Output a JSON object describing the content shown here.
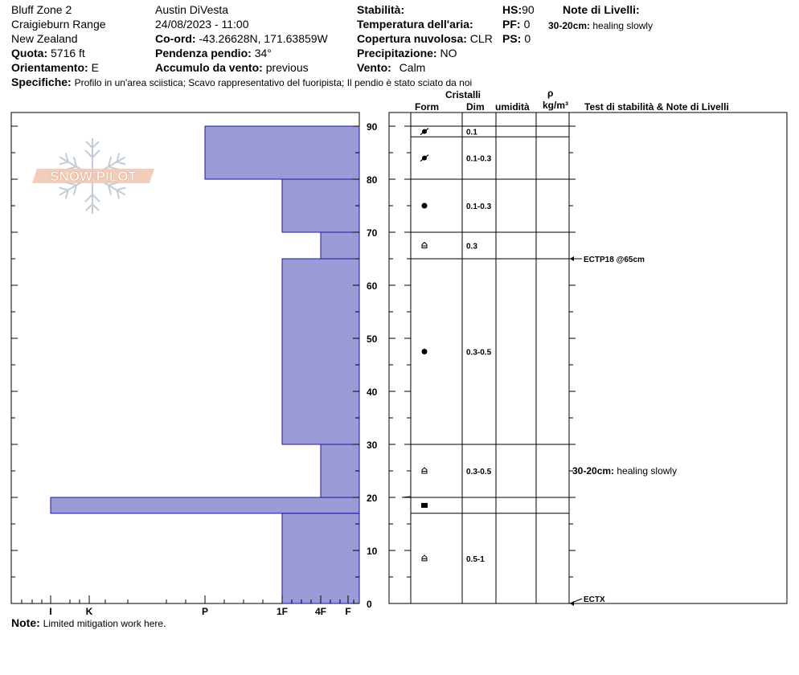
{
  "header": {
    "location": "Bluff Zone 2",
    "range": "Craigieburn Range",
    "country": "New Zealand",
    "quota_label": "Quota:",
    "quota_value": "5716 ft",
    "orientamento_label": "Orientamento:",
    "orientamento_value": "E",
    "observer": "Austin DiVesta",
    "datetime": "24/08/2023 - 11:00",
    "coord_label": "Co-ord:",
    "coord_value": "-43.26628N, 171.63859W",
    "pendenza_label": "Pendenza pendio:",
    "pendenza_value": "34°",
    "accumulo_label": "Accumulo da vento:",
    "accumulo_value": "previous",
    "stabilita_label": "Stabilità:",
    "temp_label": "Temperatura dell'aria:",
    "copertura_label": "Copertura nuvolosa:",
    "copertura_value": "CLR",
    "precipitazione_label": "Precipitazione:",
    "precipitazione_value": "NO",
    "vento_label": "Vento:",
    "vento_value": "Calm",
    "hs_label": "HS:",
    "hs_value": "90",
    "pf_label": "PF:",
    "pf_value": "0",
    "ps_label": "PS:",
    "ps_value": "0",
    "note_livelli_label": "Note di Livelli:",
    "note_livelli_depth": "30-20cm:",
    "note_livelli_text": "healing slowly",
    "specifiche_label": "Specifiche:",
    "specifiche_value": "Profilo in un'area sciistica; Scavo rappresentativo del fuoripista; Il pendio è stato sciato da noi"
  },
  "logo": {
    "text": "SNOW PILOT"
  },
  "note": {
    "label": "Note:",
    "value": "Limited mitigation work here."
  },
  "columns": {
    "cristalli": "Cristalli",
    "form": "Form",
    "dim": "Dim",
    "umidita": "umidità",
    "rho": "ρ",
    "density_unit": "kg/m³",
    "test_title": "Test di stabilità & Note di Livelli"
  },
  "chart_data": {
    "type": "bar",
    "orientation": "horizontal",
    "y_axis": {
      "range": [
        0,
        90
      ],
      "ticks": [
        0,
        10,
        20,
        30,
        40,
        50,
        60,
        70,
        80,
        90
      ]
    },
    "x_axis": {
      "scale": "hand hardness",
      "ticks": [
        "I",
        "K",
        "P",
        "1F",
        "4F",
        "F"
      ]
    },
    "layers": [
      {
        "top": 90,
        "bottom": 80,
        "hardness": "P"
      },
      {
        "top": 80,
        "bottom": 70,
        "hardness": "1F"
      },
      {
        "top": 70,
        "bottom": 65,
        "hardness": "4F"
      },
      {
        "top": 65,
        "bottom": 30,
        "hardness": "1F"
      },
      {
        "top": 30,
        "bottom": 20,
        "hardness": "4F"
      },
      {
        "top": 20,
        "bottom": 17,
        "hardness": "I"
      },
      {
        "top": 17,
        "bottom": 0,
        "hardness": "1F"
      }
    ],
    "crystals": [
      {
        "top": 90,
        "bottom": 88,
        "form": "precipitation-particles-icon",
        "dim": "0.1"
      },
      {
        "top": 88,
        "bottom": 80,
        "form": "precipitation-particles-icon",
        "dim": "0.1-0.3"
      },
      {
        "top": 80,
        "bottom": 70,
        "form": "rounded-grains-icon",
        "dim": "0.1-0.3"
      },
      {
        "top": 70,
        "bottom": 65,
        "form": "depth-hoar-icon",
        "dim": "0.3"
      },
      {
        "top": 65,
        "bottom": 30,
        "form": "rounded-grains-icon",
        "dim": "0.3-0.5"
      },
      {
        "top": 30,
        "bottom": 20,
        "form": "depth-hoar-icon",
        "dim": "0.3-0.5"
      },
      {
        "top": 20,
        "bottom": 17,
        "form": "melt-freeze-crust-icon",
        "dim": ""
      },
      {
        "top": 17,
        "bottom": 0,
        "form": "depth-hoar-icon",
        "dim": "0.5-1"
      }
    ],
    "tests": [
      {
        "depth": 65,
        "label": "ECTP18 @65cm"
      },
      {
        "depth": 0,
        "label": "ECTX"
      }
    ],
    "layer_notes": [
      {
        "depth_label": "30-20cm:",
        "text": "healing slowly",
        "at": 25
      }
    ]
  }
}
